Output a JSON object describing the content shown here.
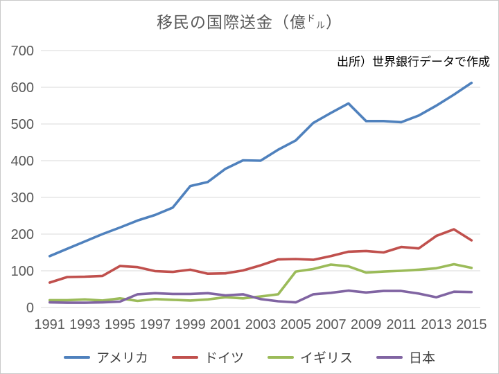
{
  "page": {
    "title_prefix": "移民の国際送金（億",
    "title_unit_top": "ド",
    "title_unit_bottom": "ル",
    "title_suffix": "）",
    "source_note": "出所）世界銀行データで作成"
  },
  "chart_data": {
    "type": "line",
    "title": "移民の国際送金（億ドル）",
    "ylabel": "",
    "xlabel": "",
    "ylim": [
      0,
      700
    ],
    "ytick_step": 100,
    "grid": "horizontal-only",
    "grid_color": "#D9D9D9",
    "tick_label_color": "#595959",
    "legend_position": "bottom",
    "x": [
      1991,
      1992,
      1993,
      1994,
      1995,
      1996,
      1997,
      1998,
      1999,
      2000,
      2001,
      2002,
      2003,
      2004,
      2005,
      2006,
      2007,
      2008,
      2009,
      2010,
      2011,
      2012,
      2013,
      2014,
      2015
    ],
    "xticks": [
      1991,
      1993,
      1995,
      1997,
      1999,
      2001,
      2003,
      2005,
      2007,
      2009,
      2011,
      2013,
      2015
    ],
    "series": [
      {
        "name": "アメリカ",
        "color": "#4F81BD",
        "values": [
          140,
          160,
          180,
          200,
          218,
          237,
          252,
          272,
          331,
          342,
          378,
          401,
          400,
          430,
          455,
          503,
          530,
          556,
          508,
          508,
          505,
          523,
          550,
          580,
          612
        ]
      },
      {
        "name": "ドイツ",
        "color": "#C0504D",
        "values": [
          68,
          83,
          84,
          86,
          113,
          110,
          99,
          97,
          103,
          92,
          93,
          101,
          115,
          131,
          132,
          130,
          140,
          152,
          154,
          150,
          165,
          161,
          195,
          213,
          183
        ]
      },
      {
        "name": "イギリス",
        "color": "#9BBB59",
        "values": [
          20,
          20,
          22,
          19,
          25,
          18,
          23,
          21,
          19,
          22,
          28,
          25,
          30,
          36,
          98,
          105,
          117,
          112,
          95,
          98,
          100,
          103,
          107,
          118,
          108
        ]
      },
      {
        "name": "日本",
        "color": "#8064A2",
        "values": [
          14,
          13,
          13,
          14,
          16,
          36,
          39,
          37,
          37,
          39,
          33,
          36,
          23,
          17,
          14,
          36,
          40,
          46,
          41,
          45,
          45,
          38,
          28,
          43,
          42
        ]
      }
    ]
  }
}
